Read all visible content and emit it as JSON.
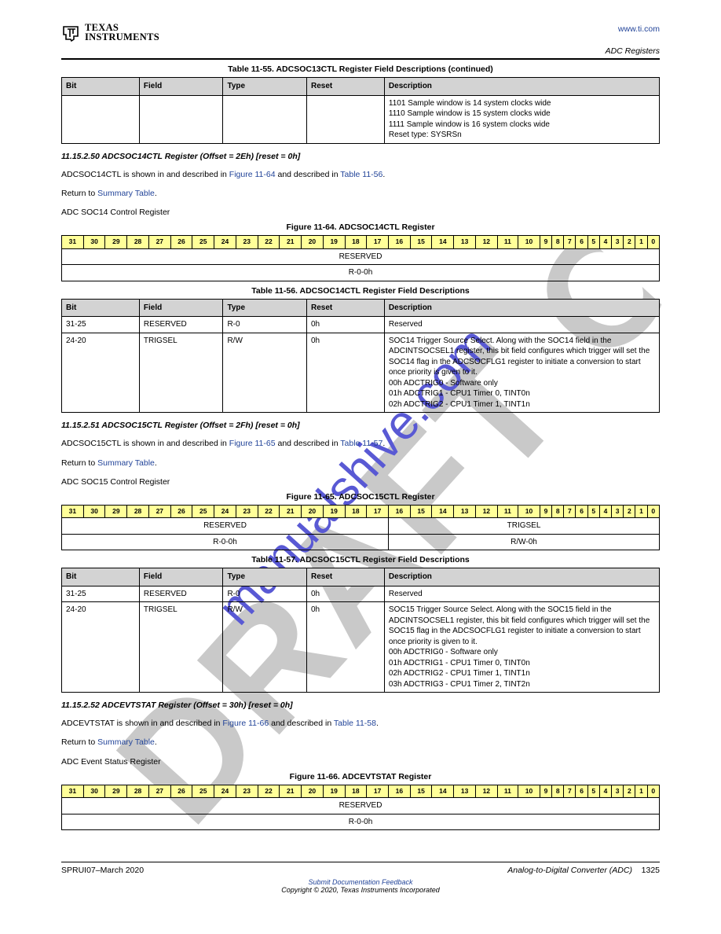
{
  "logo_top": "TEXAS",
  "logo_bottom": "INSTRUMENTS",
  "header_url": "www.ti.com",
  "chapter": "ADC Registers",
  "sec1": {
    "caption": "Table 11-55. ADCSOC13CTL Register Field Descriptions (continued)",
    "cols": [
      "Bit",
      "Field",
      "Type",
      "Reset",
      "Description"
    ],
    "rows": [
      [
        "",
        "",
        "",
        "",
        "1101 Sample window is 14 system clocks wide\n1110 Sample window is 15 system clocks wide\n1111 Sample window is 16 system clocks wide\nReset type: SYSRSn"
      ]
    ]
  },
  "sec2": {
    "title": "11.15.2.50 ADCSOC14CTL Register (Offset = 2Eh) [reset = 0h]",
    "desc_line": "ADCSOC14CTL is shown in  and described in ",
    "fig_ref": "Figure 11-64",
    "tbl_ref": "Table 11-56",
    "desc_end": "Return to ",
    "return_link": "Summary Table",
    "para2": "ADC SOC14 Control Register",
    "fig_caption": "Figure 11-64. ADCSOC14CTL Register",
    "fig_head": [
      "31",
      "30",
      "29",
      "28",
      "27",
      "26",
      "25",
      "24",
      "23",
      "22",
      "21",
      "20",
      "19",
      "18",
      "17",
      "16",
      "15",
      "14",
      "13",
      "12",
      "11",
      "10",
      "9",
      "8",
      "7",
      "6",
      "5",
      "4",
      "3",
      "2",
      "1",
      "0"
    ],
    "fig_r1": "RESERVED",
    "fig_r2": "R-0-0h",
    "tbl_caption": "Table 11-56. ADCSOC14CTL Register Field Descriptions",
    "cols": [
      "Bit",
      "Field",
      "Type",
      "Reset",
      "Description"
    ],
    "rows": [
      [
        "31-25",
        "RESERVED",
        "R-0",
        "0h",
        "Reserved"
      ],
      [
        "24-20",
        "TRIGSEL",
        "R/W",
        "0h",
        "SOC14 Trigger Source Select. Along with the SOC14 field in the ADCINTSOCSEL1 register, this bit field configures which trigger will set the SOC14 flag in the ADCSOCFLG1 register to initiate a conversion to start once priority is given to it.\n00h ADCTRIG0 - Software only\n01h ADCTRIG1 - CPU1 Timer 0, TINT0n\n02h ADCTRIG2 - CPU1 Timer 1, TINT1n"
      ]
    ]
  },
  "sec3": {
    "title": "11.15.2.51 ADCSOC15CTL Register (Offset = 2Fh) [reset = 0h]",
    "desc_line": "ADCSOC15CTL is shown in  and described in ",
    "fig_ref": "Figure 11-65",
    "tbl_ref": "Table 11-57",
    "desc_end": "Return to ",
    "return_link": "Summary Table",
    "para2": "ADC SOC15 Control Register",
    "fig_caption": "Figure 11-65. ADCSOC15CTL Register",
    "fig_head": [
      "31",
      "30",
      "29",
      "28",
      "27",
      "26",
      "25",
      "24",
      "23",
      "22",
      "21",
      "20",
      "19",
      "18",
      "17",
      "16",
      "15",
      "14",
      "13",
      "12",
      "11",
      "10",
      "9",
      "8",
      "7",
      "6",
      "5",
      "4",
      "3",
      "2",
      "1",
      "0"
    ],
    "fig_r1a": "RESERVED",
    "fig_r1b": "TRIGSEL",
    "fig_r2a": "R-0-0h",
    "fig_r2b": "R/W-0h",
    "tbl_caption": "Table 11-57. ADCSOC15CTL Register Field Descriptions",
    "cols": [
      "Bit",
      "Field",
      "Type",
      "Reset",
      "Description"
    ],
    "rows": [
      [
        "31-25",
        "RESERVED",
        "R-0",
        "0h",
        "Reserved"
      ],
      [
        "24-20",
        "TRIGSEL",
        "R/W",
        "0h",
        "SOC15 Trigger Source Select. Along with the SOC15 field in the ADCINTSOCSEL1 register, this bit field configures which trigger will set the SOC15 flag in the ADCSOCFLG1 register to initiate a conversion to start once priority is given to it.\n00h ADCTRIG0 - Software only\n01h ADCTRIG1 - CPU1 Timer 0, TINT0n\n02h ADCTRIG2 - CPU1 Timer 1, TINT1n\n03h ADCTRIG3 - CPU1 Timer 2, TINT2n"
      ]
    ]
  },
  "sec4": {
    "title": "11.15.2.52 ADCEVTSTAT Register (Offset = 30h) [reset = 0h]",
    "desc_line": "ADCEVTSTAT is shown in  and described in ",
    "fig_ref": "Figure 11-66",
    "tbl_ref": "Table 11-58",
    "desc_end": "Return to ",
    "return_link": "Summary Table",
    "para2": "ADC Event Status Register",
    "fig_caption": "Figure 11-66. ADCEVTSTAT Register",
    "fig_head": [
      "31",
      "30",
      "29",
      "28",
      "27",
      "26",
      "25",
      "24",
      "23",
      "22",
      "21",
      "20",
      "19",
      "18",
      "17",
      "16",
      "15",
      "14",
      "13",
      "12",
      "11",
      "10",
      "9",
      "8",
      "7",
      "6",
      "5",
      "4",
      "3",
      "2",
      "1",
      "0"
    ],
    "fig_r1": "RESERVED",
    "fig_r2": "R-0-0h"
  },
  "footer": {
    "left": "SPRUI07–March 2020",
    "right": "Analog-to-Digital Converter (ADC)",
    "page": "1325",
    "copy_label": "Submit Documentation Feedback",
    "copy": "Copyright © 2020, Texas Instruments Incorporated"
  }
}
